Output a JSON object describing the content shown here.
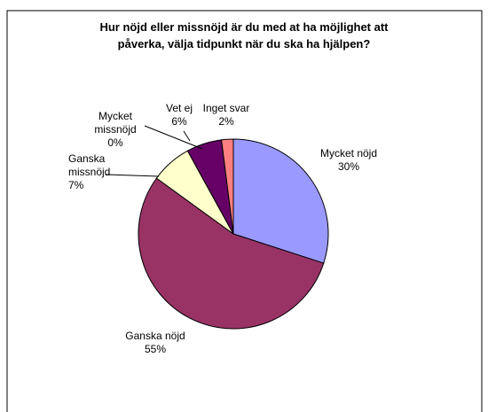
{
  "chart_data": {
    "type": "pie",
    "title": "Hur nöjd eller missnöjd är du med at ha möjlighet att påverka, välja tidpunkt när du ska ha hjälpen?",
    "categories": [
      "Mycket nöjd",
      "Ganska nöjd",
      "Ganska missnöjd",
      "Mycket missnöjd",
      "Vet ej",
      "Inget svar"
    ],
    "values": [
      30,
      55,
      7,
      0,
      6,
      2
    ],
    "value_labels": [
      "30%",
      "55%",
      "7%",
      "0%",
      "6%",
      "2%"
    ],
    "colors": [
      "#9999ff",
      "#993366",
      "#ffffcc",
      "#ccffff",
      "#660066",
      "#ff8080"
    ]
  }
}
